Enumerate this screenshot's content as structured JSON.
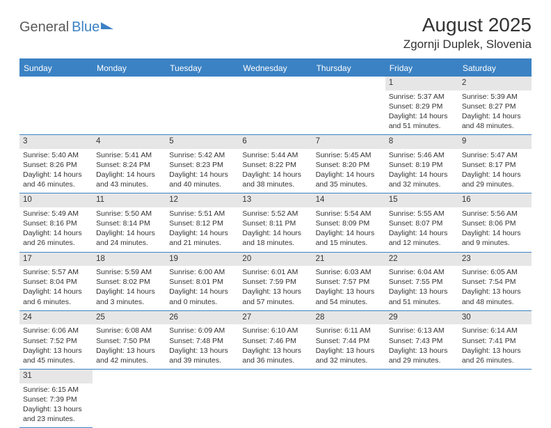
{
  "logo": {
    "part1": "General",
    "part2": "Blue"
  },
  "title": "August 2025",
  "location": "Zgornji Duplek, Slovenia",
  "colors": {
    "header_bg": "#3b82c4",
    "header_text": "#ffffff",
    "daynum_bg": "#e6e6e6",
    "text": "#333333",
    "logo_gray": "#5a5a5a",
    "logo_blue": "#3b82c4"
  },
  "weekdays": [
    "Sunday",
    "Monday",
    "Tuesday",
    "Wednesday",
    "Thursday",
    "Friday",
    "Saturday"
  ],
  "leading_blanks": 5,
  "days": [
    {
      "n": "1",
      "sr": "Sunrise: 5:37 AM",
      "ss": "Sunset: 8:29 PM",
      "dl": "Daylight: 14 hours and 51 minutes."
    },
    {
      "n": "2",
      "sr": "Sunrise: 5:39 AM",
      "ss": "Sunset: 8:27 PM",
      "dl": "Daylight: 14 hours and 48 minutes."
    },
    {
      "n": "3",
      "sr": "Sunrise: 5:40 AM",
      "ss": "Sunset: 8:26 PM",
      "dl": "Daylight: 14 hours and 46 minutes."
    },
    {
      "n": "4",
      "sr": "Sunrise: 5:41 AM",
      "ss": "Sunset: 8:24 PM",
      "dl": "Daylight: 14 hours and 43 minutes."
    },
    {
      "n": "5",
      "sr": "Sunrise: 5:42 AM",
      "ss": "Sunset: 8:23 PM",
      "dl": "Daylight: 14 hours and 40 minutes."
    },
    {
      "n": "6",
      "sr": "Sunrise: 5:44 AM",
      "ss": "Sunset: 8:22 PM",
      "dl": "Daylight: 14 hours and 38 minutes."
    },
    {
      "n": "7",
      "sr": "Sunrise: 5:45 AM",
      "ss": "Sunset: 8:20 PM",
      "dl": "Daylight: 14 hours and 35 minutes."
    },
    {
      "n": "8",
      "sr": "Sunrise: 5:46 AM",
      "ss": "Sunset: 8:19 PM",
      "dl": "Daylight: 14 hours and 32 minutes."
    },
    {
      "n": "9",
      "sr": "Sunrise: 5:47 AM",
      "ss": "Sunset: 8:17 PM",
      "dl": "Daylight: 14 hours and 29 minutes."
    },
    {
      "n": "10",
      "sr": "Sunrise: 5:49 AM",
      "ss": "Sunset: 8:16 PM",
      "dl": "Daylight: 14 hours and 26 minutes."
    },
    {
      "n": "11",
      "sr": "Sunrise: 5:50 AM",
      "ss": "Sunset: 8:14 PM",
      "dl": "Daylight: 14 hours and 24 minutes."
    },
    {
      "n": "12",
      "sr": "Sunrise: 5:51 AM",
      "ss": "Sunset: 8:12 PM",
      "dl": "Daylight: 14 hours and 21 minutes."
    },
    {
      "n": "13",
      "sr": "Sunrise: 5:52 AM",
      "ss": "Sunset: 8:11 PM",
      "dl": "Daylight: 14 hours and 18 minutes."
    },
    {
      "n": "14",
      "sr": "Sunrise: 5:54 AM",
      "ss": "Sunset: 8:09 PM",
      "dl": "Daylight: 14 hours and 15 minutes."
    },
    {
      "n": "15",
      "sr": "Sunrise: 5:55 AM",
      "ss": "Sunset: 8:07 PM",
      "dl": "Daylight: 14 hours and 12 minutes."
    },
    {
      "n": "16",
      "sr": "Sunrise: 5:56 AM",
      "ss": "Sunset: 8:06 PM",
      "dl": "Daylight: 14 hours and 9 minutes."
    },
    {
      "n": "17",
      "sr": "Sunrise: 5:57 AM",
      "ss": "Sunset: 8:04 PM",
      "dl": "Daylight: 14 hours and 6 minutes."
    },
    {
      "n": "18",
      "sr": "Sunrise: 5:59 AM",
      "ss": "Sunset: 8:02 PM",
      "dl": "Daylight: 14 hours and 3 minutes."
    },
    {
      "n": "19",
      "sr": "Sunrise: 6:00 AM",
      "ss": "Sunset: 8:01 PM",
      "dl": "Daylight: 14 hours and 0 minutes."
    },
    {
      "n": "20",
      "sr": "Sunrise: 6:01 AM",
      "ss": "Sunset: 7:59 PM",
      "dl": "Daylight: 13 hours and 57 minutes."
    },
    {
      "n": "21",
      "sr": "Sunrise: 6:03 AM",
      "ss": "Sunset: 7:57 PM",
      "dl": "Daylight: 13 hours and 54 minutes."
    },
    {
      "n": "22",
      "sr": "Sunrise: 6:04 AM",
      "ss": "Sunset: 7:55 PM",
      "dl": "Daylight: 13 hours and 51 minutes."
    },
    {
      "n": "23",
      "sr": "Sunrise: 6:05 AM",
      "ss": "Sunset: 7:54 PM",
      "dl": "Daylight: 13 hours and 48 minutes."
    },
    {
      "n": "24",
      "sr": "Sunrise: 6:06 AM",
      "ss": "Sunset: 7:52 PM",
      "dl": "Daylight: 13 hours and 45 minutes."
    },
    {
      "n": "25",
      "sr": "Sunrise: 6:08 AM",
      "ss": "Sunset: 7:50 PM",
      "dl": "Daylight: 13 hours and 42 minutes."
    },
    {
      "n": "26",
      "sr": "Sunrise: 6:09 AM",
      "ss": "Sunset: 7:48 PM",
      "dl": "Daylight: 13 hours and 39 minutes."
    },
    {
      "n": "27",
      "sr": "Sunrise: 6:10 AM",
      "ss": "Sunset: 7:46 PM",
      "dl": "Daylight: 13 hours and 36 minutes."
    },
    {
      "n": "28",
      "sr": "Sunrise: 6:11 AM",
      "ss": "Sunset: 7:44 PM",
      "dl": "Daylight: 13 hours and 32 minutes."
    },
    {
      "n": "29",
      "sr": "Sunrise: 6:13 AM",
      "ss": "Sunset: 7:43 PM",
      "dl": "Daylight: 13 hours and 29 minutes."
    },
    {
      "n": "30",
      "sr": "Sunrise: 6:14 AM",
      "ss": "Sunset: 7:41 PM",
      "dl": "Daylight: 13 hours and 26 minutes."
    },
    {
      "n": "31",
      "sr": "Sunrise: 6:15 AM",
      "ss": "Sunset: 7:39 PM",
      "dl": "Daylight: 13 hours and 23 minutes."
    }
  ]
}
